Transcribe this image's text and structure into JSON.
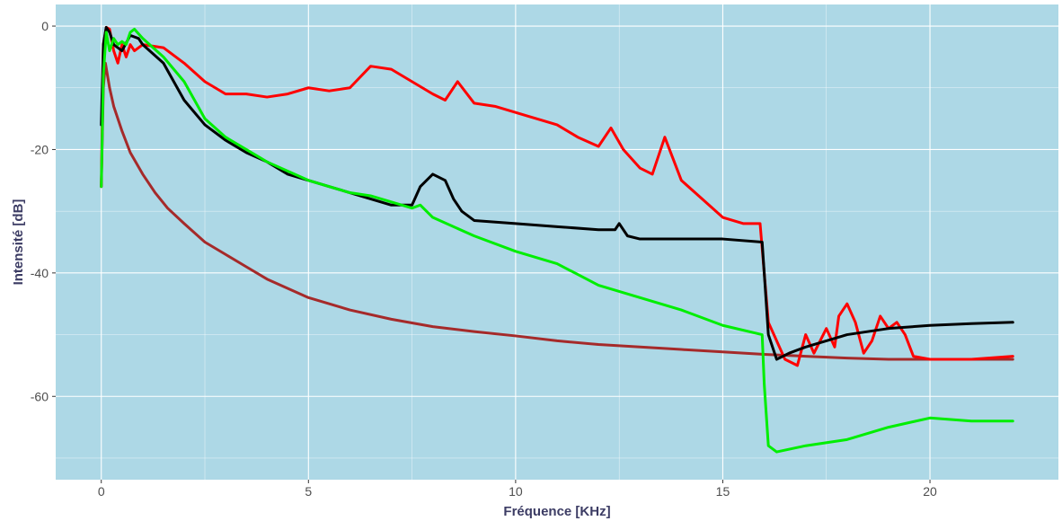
{
  "chart_data": {
    "type": "line",
    "title": "",
    "xlabel": "Fréquence [KHz]",
    "ylabel": "Intensité [dB]",
    "xlim": [
      -1.1,
      23.1
    ],
    "ylim": [
      -73.5,
      3.5
    ],
    "x_ticks": [
      0,
      5,
      10,
      15,
      20
    ],
    "y_ticks": [
      0,
      -20,
      -40,
      -60
    ],
    "x_tick_labels": [
      "0",
      "5",
      "10",
      "15",
      "20"
    ],
    "y_tick_labels": [
      "0",
      "-20",
      "-40",
      "-60"
    ],
    "grid": true,
    "legend": "none",
    "background": "#add8e6",
    "series": [
      {
        "color": "#a52a2a",
        "points": [
          [
            0,
            -26
          ],
          [
            0.05,
            -10
          ],
          [
            0.1,
            -6
          ],
          [
            0.2,
            -10
          ],
          [
            0.3,
            -13
          ],
          [
            0.5,
            -17
          ],
          [
            0.7,
            -20.5
          ],
          [
            1.0,
            -24
          ],
          [
            1.3,
            -27
          ],
          [
            1.6,
            -29.5
          ],
          [
            2.0,
            -32
          ],
          [
            2.5,
            -35
          ],
          [
            3.0,
            -37
          ],
          [
            3.5,
            -39
          ],
          [
            4.0,
            -41
          ],
          [
            5.0,
            -44
          ],
          [
            6.0,
            -46
          ],
          [
            7.0,
            -47.5
          ],
          [
            8.0,
            -48.7
          ],
          [
            9.0,
            -49.5
          ],
          [
            10.0,
            -50.2
          ],
          [
            11.0,
            -51
          ],
          [
            12.0,
            -51.6
          ],
          [
            13.0,
            -52
          ],
          [
            14.0,
            -52.4
          ],
          [
            15.0,
            -52.8
          ],
          [
            16.0,
            -53.2
          ],
          [
            17.0,
            -53.5
          ],
          [
            18.0,
            -53.8
          ],
          [
            19.0,
            -54
          ],
          [
            20.0,
            -54
          ],
          [
            21.0,
            -54
          ],
          [
            22.0,
            -54
          ]
        ]
      },
      {
        "color": "#ff0000",
        "points": [
          [
            0,
            -26
          ],
          [
            0.05,
            -3
          ],
          [
            0.12,
            -0.2
          ],
          [
            0.2,
            -0.5
          ],
          [
            0.3,
            -4
          ],
          [
            0.4,
            -6
          ],
          [
            0.5,
            -3
          ],
          [
            0.6,
            -5
          ],
          [
            0.7,
            -3
          ],
          [
            0.8,
            -4
          ],
          [
            1.0,
            -3
          ],
          [
            1.5,
            -3.5
          ],
          [
            2.0,
            -6
          ],
          [
            2.5,
            -9
          ],
          [
            3.0,
            -11
          ],
          [
            3.5,
            -11
          ],
          [
            4.0,
            -11.5
          ],
          [
            4.5,
            -11
          ],
          [
            5.0,
            -10
          ],
          [
            5.5,
            -10.5
          ],
          [
            6.0,
            -10
          ],
          [
            6.5,
            -6.5
          ],
          [
            7.0,
            -7
          ],
          [
            7.5,
            -9
          ],
          [
            8.0,
            -11
          ],
          [
            8.3,
            -12
          ],
          [
            8.6,
            -9
          ],
          [
            9.0,
            -12.5
          ],
          [
            9.5,
            -13
          ],
          [
            10.0,
            -14
          ],
          [
            10.5,
            -15
          ],
          [
            11.0,
            -16
          ],
          [
            11.5,
            -18
          ],
          [
            12.0,
            -19.5
          ],
          [
            12.3,
            -16.5
          ],
          [
            12.6,
            -20
          ],
          [
            13.0,
            -23
          ],
          [
            13.3,
            -24
          ],
          [
            13.6,
            -18
          ],
          [
            14.0,
            -25
          ],
          [
            14.5,
            -28
          ],
          [
            15.0,
            -31
          ],
          [
            15.5,
            -32
          ],
          [
            15.9,
            -32
          ],
          [
            16.0,
            -40
          ],
          [
            16.1,
            -48
          ],
          [
            16.3,
            -51
          ],
          [
            16.5,
            -54
          ],
          [
            16.8,
            -55
          ],
          [
            17.0,
            -50
          ],
          [
            17.2,
            -53
          ],
          [
            17.5,
            -49
          ],
          [
            17.7,
            -52
          ],
          [
            17.8,
            -47
          ],
          [
            18.0,
            -45
          ],
          [
            18.2,
            -48
          ],
          [
            18.4,
            -53
          ],
          [
            18.6,
            -51
          ],
          [
            18.8,
            -47
          ],
          [
            19.0,
            -49
          ],
          [
            19.2,
            -48
          ],
          [
            19.4,
            -50
          ],
          [
            19.6,
            -53.5
          ],
          [
            20.0,
            -54
          ],
          [
            21.0,
            -54
          ],
          [
            22.0,
            -53.5
          ]
        ]
      },
      {
        "color": "#000000",
        "points": [
          [
            0,
            -16
          ],
          [
            0.05,
            -3
          ],
          [
            0.12,
            -0.2
          ],
          [
            0.2,
            -1
          ],
          [
            0.3,
            -3
          ],
          [
            0.5,
            -4
          ],
          [
            0.7,
            -1.5
          ],
          [
            0.9,
            -2
          ],
          [
            1.0,
            -3
          ],
          [
            1.5,
            -6
          ],
          [
            2.0,
            -12
          ],
          [
            2.5,
            -16
          ],
          [
            3.0,
            -18.5
          ],
          [
            3.5,
            -20.5
          ],
          [
            4.0,
            -22
          ],
          [
            4.5,
            -24
          ],
          [
            5.0,
            -25
          ],
          [
            5.5,
            -26
          ],
          [
            6.0,
            -27
          ],
          [
            6.5,
            -28
          ],
          [
            7.0,
            -29
          ],
          [
            7.5,
            -29
          ],
          [
            7.7,
            -26
          ],
          [
            8.0,
            -24
          ],
          [
            8.3,
            -25
          ],
          [
            8.5,
            -28
          ],
          [
            8.7,
            -30
          ],
          [
            9.0,
            -31.5
          ],
          [
            10.0,
            -32
          ],
          [
            11.0,
            -32.5
          ],
          [
            12.0,
            -33
          ],
          [
            12.4,
            -33
          ],
          [
            12.5,
            -32
          ],
          [
            12.7,
            -34
          ],
          [
            13.0,
            -34.5
          ],
          [
            14.0,
            -34.5
          ],
          [
            15.0,
            -34.5
          ],
          [
            15.95,
            -35
          ],
          [
            16.0,
            -40
          ],
          [
            16.1,
            -50
          ],
          [
            16.3,
            -54
          ],
          [
            16.6,
            -53
          ],
          [
            17.0,
            -52
          ],
          [
            17.5,
            -51
          ],
          [
            18.0,
            -50
          ],
          [
            19.0,
            -49
          ],
          [
            20.0,
            -48.5
          ],
          [
            21.0,
            -48.2
          ],
          [
            22.0,
            -48
          ]
        ]
      },
      {
        "color": "#00ee00",
        "points": [
          [
            0,
            -26
          ],
          [
            0.05,
            -8
          ],
          [
            0.12,
            -1
          ],
          [
            0.2,
            -4
          ],
          [
            0.3,
            -2
          ],
          [
            0.4,
            -3
          ],
          [
            0.5,
            -2.5
          ],
          [
            0.6,
            -3
          ],
          [
            0.7,
            -1
          ],
          [
            0.8,
            -0.5
          ],
          [
            1.0,
            -2
          ],
          [
            1.5,
            -5
          ],
          [
            2.0,
            -9
          ],
          [
            2.5,
            -15
          ],
          [
            3.0,
            -18
          ],
          [
            3.5,
            -20
          ],
          [
            4.0,
            -22
          ],
          [
            4.5,
            -23.5
          ],
          [
            5.0,
            -25
          ],
          [
            5.5,
            -26
          ],
          [
            6.0,
            -27
          ],
          [
            6.5,
            -27.5
          ],
          [
            7.0,
            -28.5
          ],
          [
            7.5,
            -29.5
          ],
          [
            7.7,
            -29
          ],
          [
            8.0,
            -31
          ],
          [
            9.0,
            -34
          ],
          [
            10.0,
            -36.5
          ],
          [
            11.0,
            -38.5
          ],
          [
            12.0,
            -42
          ],
          [
            13.0,
            -44
          ],
          [
            14.0,
            -46
          ],
          [
            15.0,
            -48.5
          ],
          [
            15.95,
            -50
          ],
          [
            16.0,
            -58
          ],
          [
            16.1,
            -68
          ],
          [
            16.3,
            -69
          ],
          [
            17.0,
            -68
          ],
          [
            18.0,
            -67
          ],
          [
            19.0,
            -65
          ],
          [
            20.0,
            -63.5
          ],
          [
            21.0,
            -64
          ],
          [
            22.0,
            -64
          ]
        ]
      }
    ]
  }
}
